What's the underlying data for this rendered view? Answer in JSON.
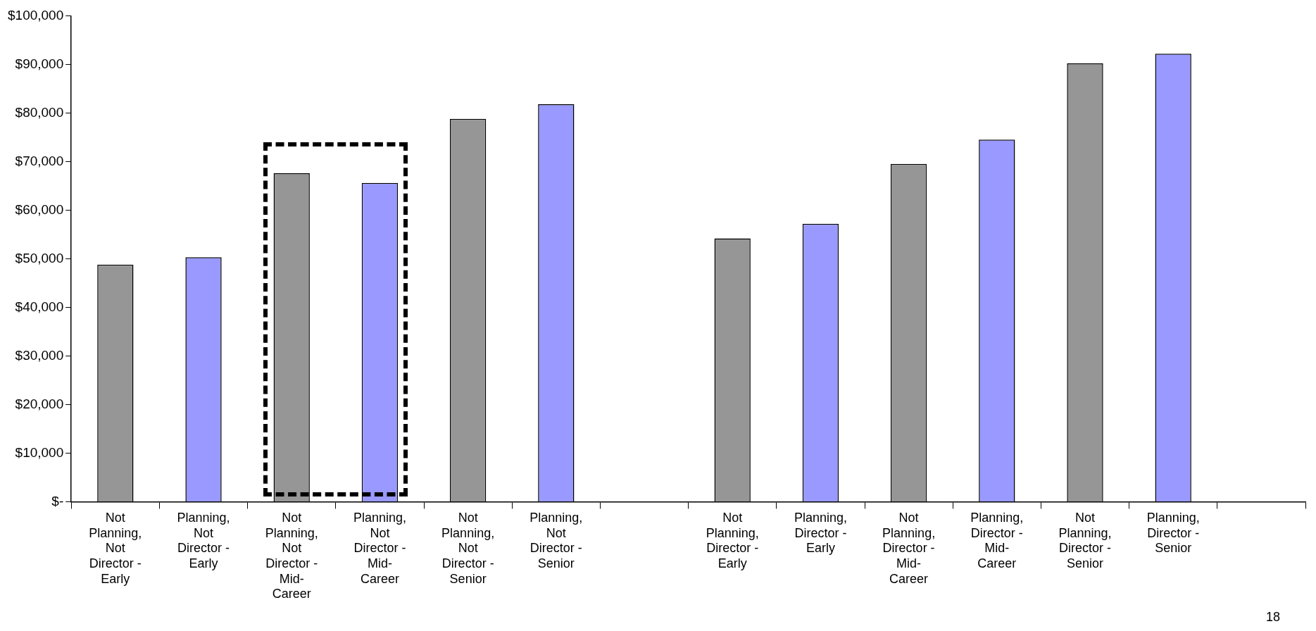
{
  "chart_data": {
    "type": "bar",
    "categories": [
      "Not Planning, Not Director - Early",
      "Planning, Not Director - Early",
      "Not Planning, Not Director - Mid-Career",
      "Planning, Not Director - Mid-Career",
      "Not Planning, Not Director - Senior",
      "Planning, Not Director - Senior",
      null,
      "Not Planning, Director - Early",
      "Planning, Director - Early",
      "Not Planning, Director - Mid-Career",
      "Planning, Director - Mid-Career",
      "Not Planning, Director - Senior",
      "Planning, Director - Senior",
      null
    ],
    "values": [
      48800,
      50300,
      67600,
      65600,
      78800,
      81800,
      null,
      54200,
      57200,
      69500,
      74500,
      90200,
      92200,
      null
    ],
    "colors": [
      "#969696",
      "#9999ff",
      "#969696",
      "#9999ff",
      "#969696",
      "#9999ff",
      null,
      "#969696",
      "#9999ff",
      "#969696",
      "#9999ff",
      "#969696",
      "#9999ff",
      null
    ],
    "ylim": [
      0,
      100000
    ],
    "yticks": [
      {
        "value": 0,
        "label": "$-"
      },
      {
        "value": 10000,
        "label": "$10,000"
      },
      {
        "value": 20000,
        "label": "$20,000"
      },
      {
        "value": 30000,
        "label": "$30,000"
      },
      {
        "value": 40000,
        "label": "$40,000"
      },
      {
        "value": 50000,
        "label": "$50,000"
      },
      {
        "value": 60000,
        "label": "$60,000"
      },
      {
        "value": 70000,
        "label": "$70,000"
      },
      {
        "value": 80000,
        "label": "$80,000"
      },
      {
        "value": 90000,
        "label": "$90,000"
      },
      {
        "value": 100000,
        "label": "$100,000"
      }
    ],
    "grid": false,
    "legend": false,
    "annotations": [
      "18"
    ]
  }
}
